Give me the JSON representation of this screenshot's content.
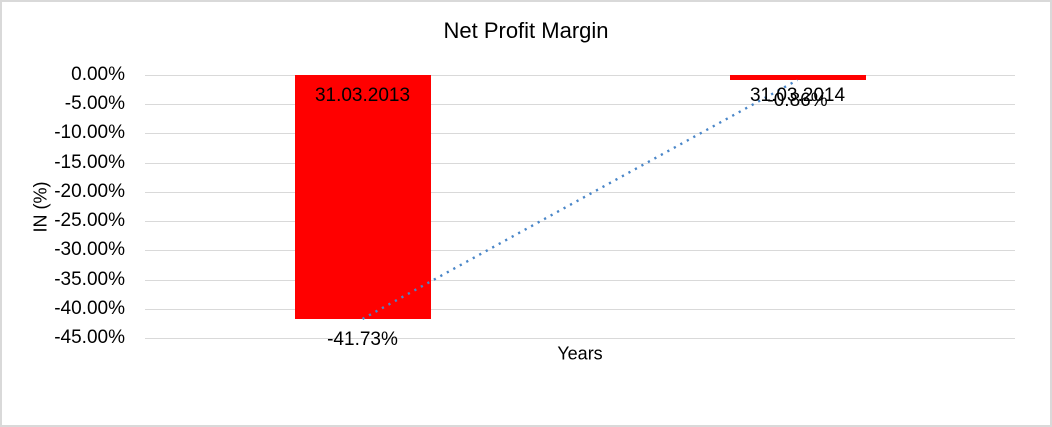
{
  "chart_data": {
    "type": "bar",
    "title": "Net Profit Margin",
    "xlabel": "Years",
    "ylabel": "IN (%)",
    "categories": [
      "31.03.2013",
      "31.03.2014"
    ],
    "series": [
      {
        "name": "Net Profit Margin",
        "values": [
          -41.73,
          -0.86
        ]
      }
    ],
    "data_labels": [
      "-41.73%",
      "-0.86%"
    ],
    "y_ticks": [
      "0.00%",
      "-5.00%",
      "-10.00%",
      "-15.00%",
      "-20.00%",
      "-25.00%",
      "-30.00%",
      "-35.00%",
      "-40.00%",
      "-45.00%"
    ],
    "ylim": [
      -45,
      0
    ],
    "grid": true,
    "legend": "none",
    "bar_color": "#ff0000",
    "gridline_color": "#d9d9d9",
    "trendline": {
      "type": "linear",
      "style": "dotted",
      "color": "#4a86c8"
    }
  }
}
